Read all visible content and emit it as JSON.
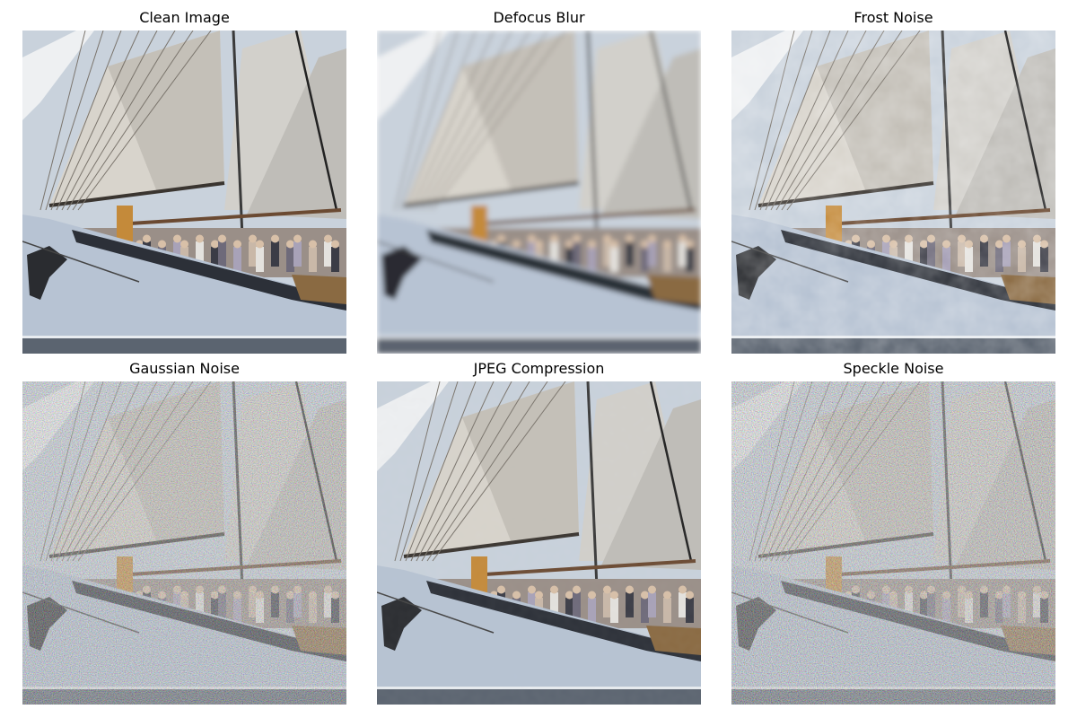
{
  "figure": {
    "panels": [
      {
        "title": "Clean Image",
        "corruption": "none"
      },
      {
        "title": "Defocus Blur",
        "corruption": "blur"
      },
      {
        "title": "Frost Noise",
        "corruption": "frost"
      },
      {
        "title": "Gaussian Noise",
        "corruption": "gaussian"
      },
      {
        "title": "JPEG Compression",
        "corruption": "jpeg"
      },
      {
        "title": "Speckle Noise",
        "corruption": "speckle"
      }
    ]
  },
  "colors": {
    "sky": "#c9d2dc",
    "sail": "#d8d4cc",
    "sail_shadow": "#9c9a98",
    "hull": "#b7c3d3",
    "hull_stripe": "#2c3038",
    "water": "#5b6470",
    "deck": "#8a5a3a"
  }
}
